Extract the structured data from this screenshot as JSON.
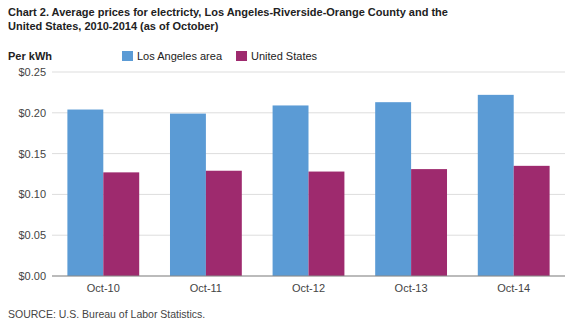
{
  "chart_data": {
    "type": "bar",
    "title": "Chart 2. Average prices for electricty, Los Angeles-Riverside-Orange County and the\nUnited States, 2010-2014  (as of October)",
    "ylabel": "Per kWh",
    "source": "SOURCE: U.S. Bureau of Labor Statistics.",
    "categories": [
      "Oct-10",
      "Oct-11",
      "Oct-12",
      "Oct-13",
      "Oct-14"
    ],
    "series": [
      {
        "name": "Los Angeles area",
        "color": "#5B9BD5",
        "values": [
          0.204,
          0.199,
          0.209,
          0.213,
          0.222
        ]
      },
      {
        "name": "United States",
        "color": "#9E2A6E",
        "values": [
          0.127,
          0.129,
          0.128,
          0.131,
          0.135
        ]
      }
    ],
    "ylim": [
      0.0,
      0.25
    ],
    "yticks": [
      {
        "value": 0.0,
        "label": "$0.00"
      },
      {
        "value": 0.05,
        "label": "$0.05"
      },
      {
        "value": 0.1,
        "label": "$0.10"
      },
      {
        "value": 0.15,
        "label": "$0.15"
      },
      {
        "value": 0.2,
        "label": "$0.20"
      },
      {
        "value": 0.25,
        "label": "$0.25"
      }
    ],
    "grid": true,
    "legend": "top-left"
  }
}
